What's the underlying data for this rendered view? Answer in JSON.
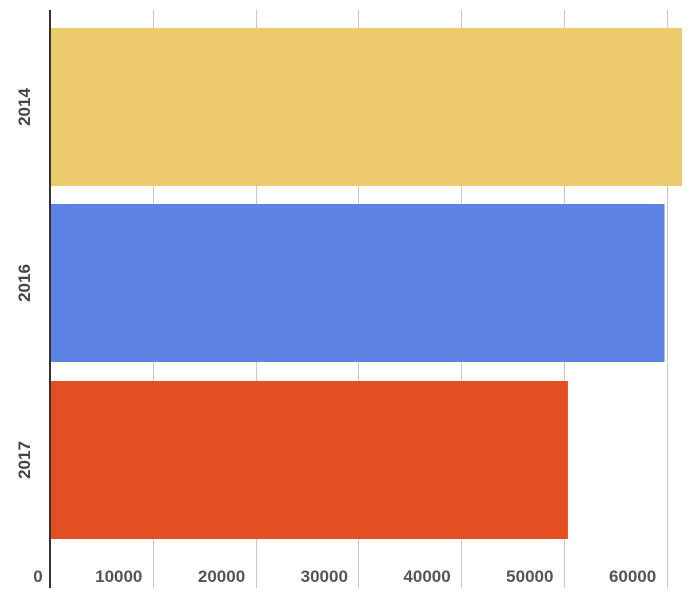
{
  "chart_data": {
    "type": "bar",
    "orientation": "horizontal",
    "categories": [
      "2014",
      "2016",
      "2017"
    ],
    "values": [
      61500,
      59800,
      50400
    ],
    "colors": [
      "#EDCA6B",
      "#5B84E4",
      "#E44F22"
    ],
    "xlim": [
      0,
      61500
    ],
    "x_ticks": [
      0,
      10000,
      20000,
      30000,
      40000,
      50000,
      60000
    ],
    "x_tick_labels": [
      "0",
      "10000",
      "20000",
      "30000",
      "40000",
      "50000",
      "60000"
    ],
    "grid": true,
    "legend": "none",
    "title": "",
    "xlabel": "",
    "ylabel": ""
  }
}
